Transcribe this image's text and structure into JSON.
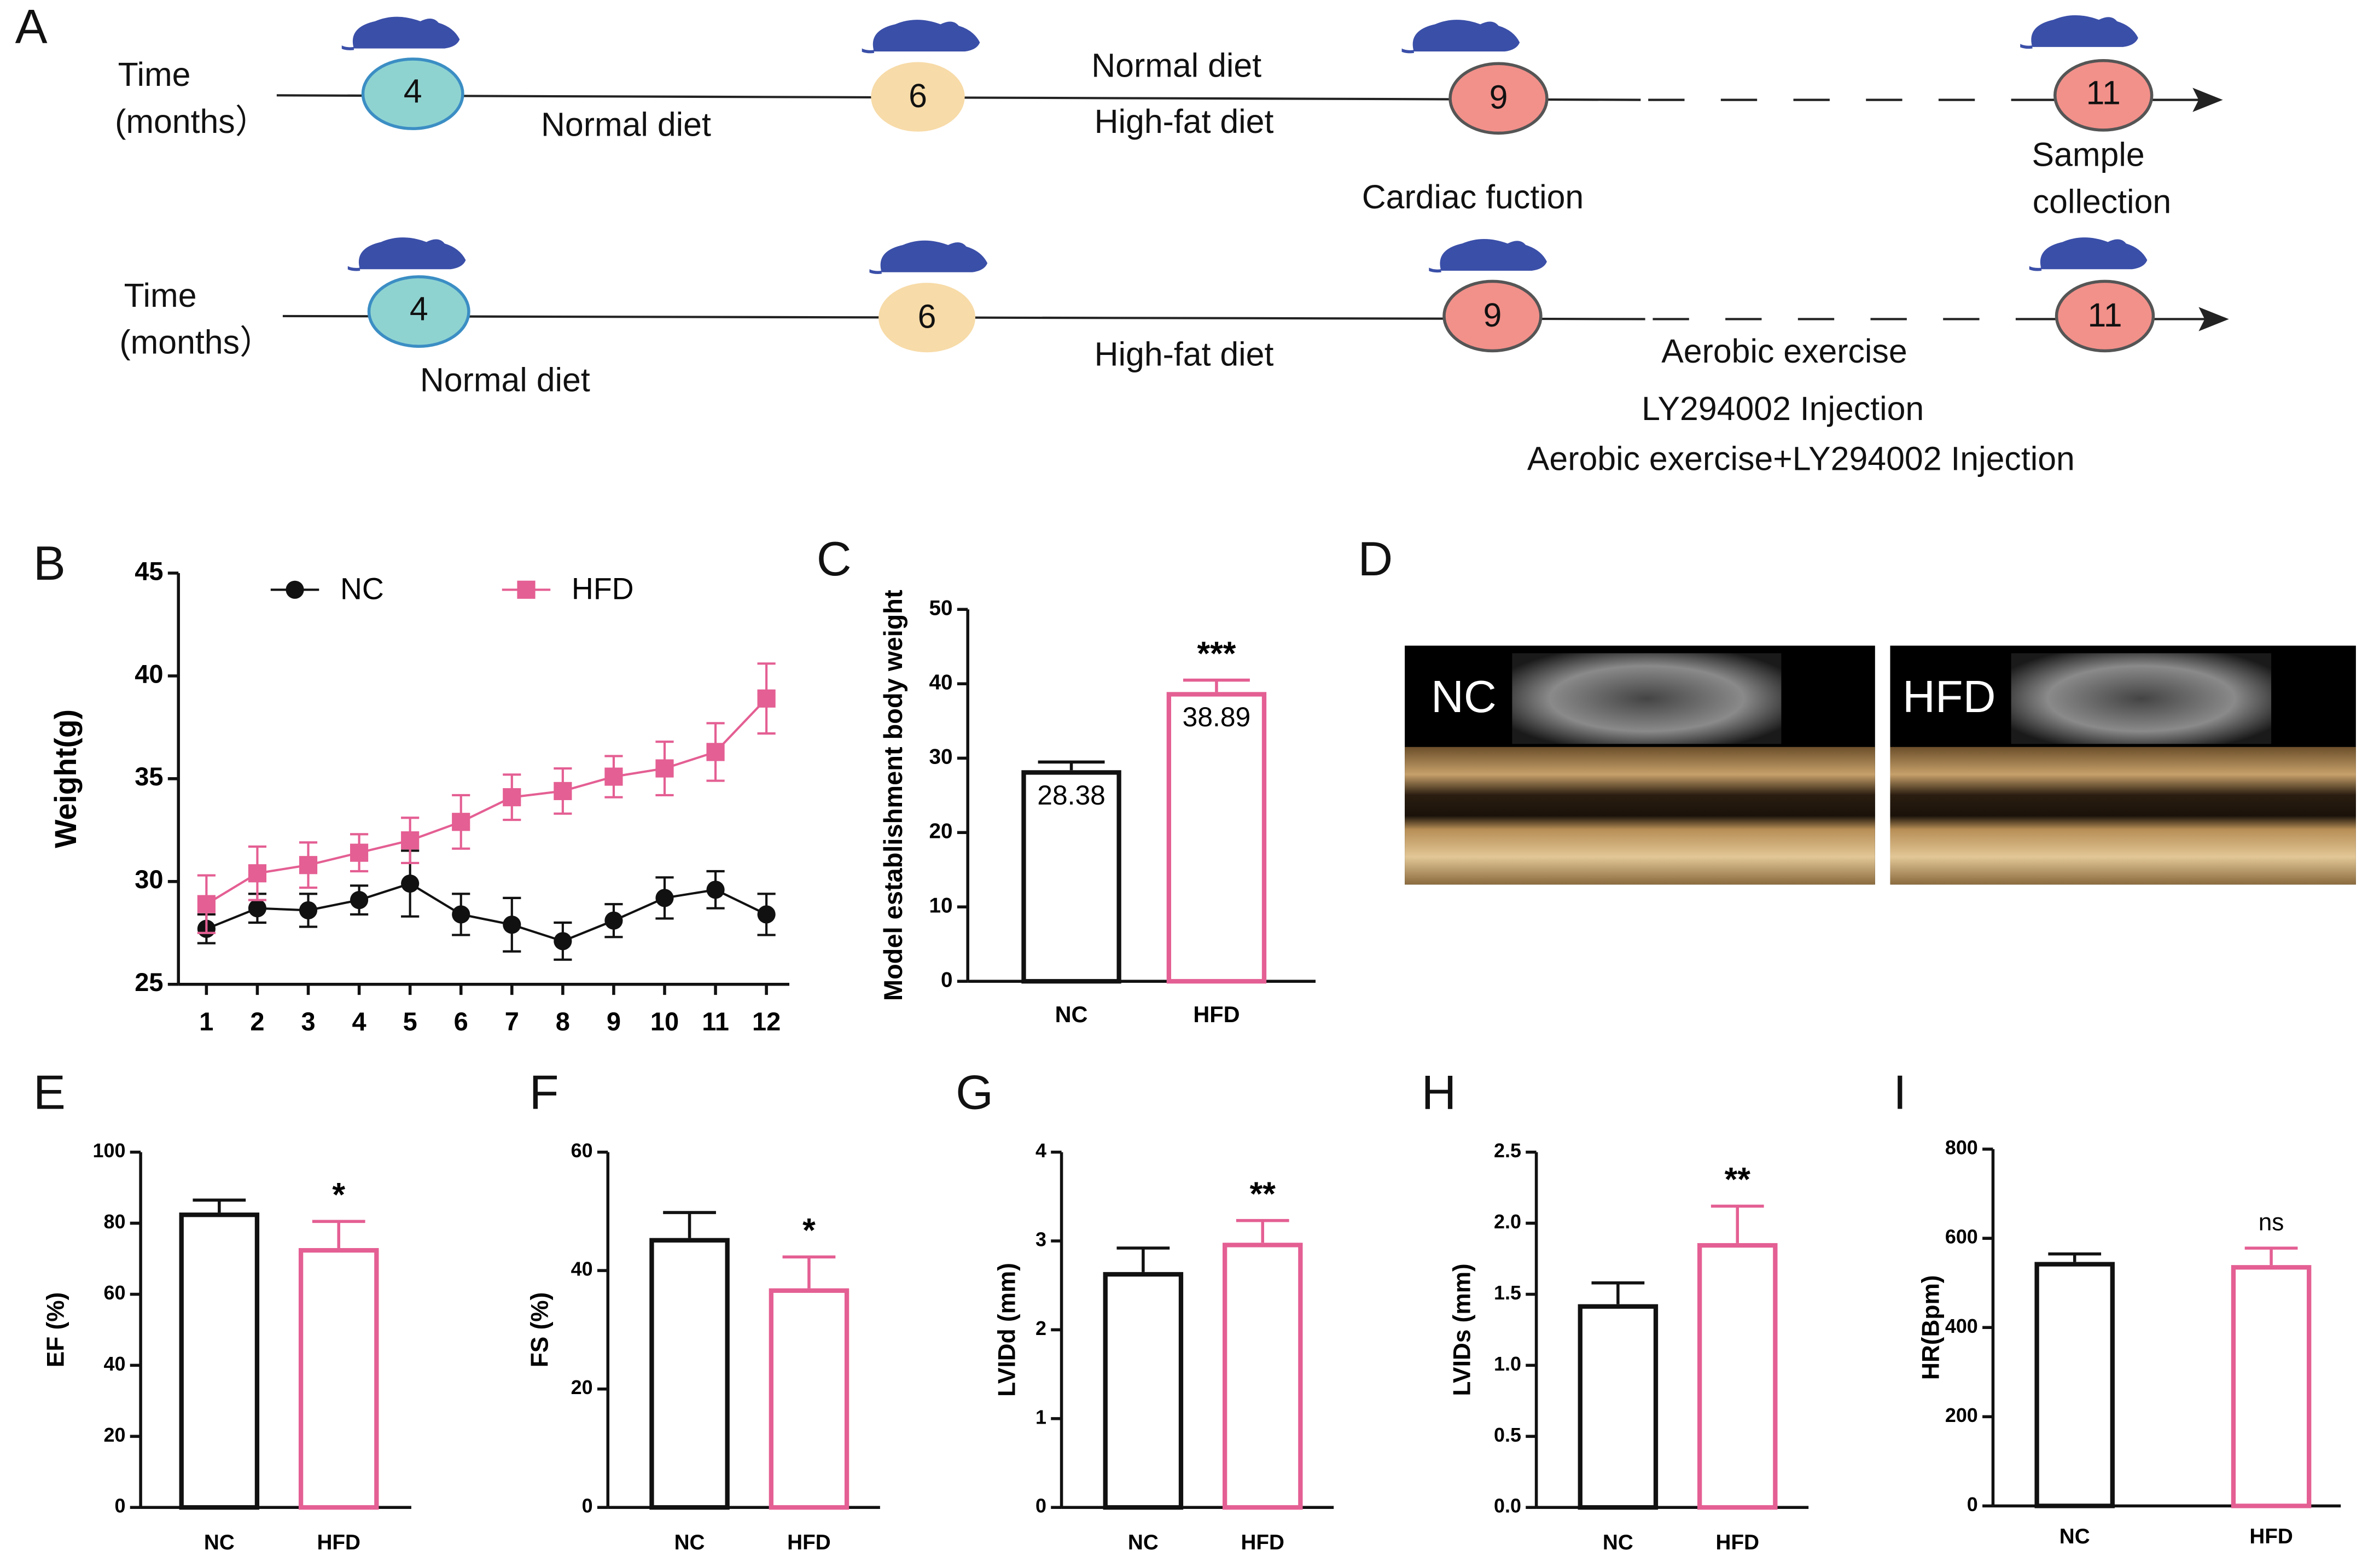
{
  "panels": [
    "A",
    "B",
    "C",
    "D",
    "E",
    "F",
    "G",
    "H",
    "I"
  ],
  "timeline": {
    "rows": [
      {
        "axis_label": [
          "Time",
          "(months）"
        ],
        "nodes": [
          "4",
          "6",
          "9",
          "11"
        ],
        "notes": [
          "Normal diet",
          "Normal diet",
          "High-fat diet",
          "Cardiac fuction",
          "Sample",
          "collection"
        ]
      },
      {
        "axis_label": [
          "Time",
          "(months）"
        ],
        "nodes": [
          "4",
          "6",
          "9",
          "11"
        ],
        "notes": [
          "Normal diet",
          "High-fat diet",
          "Aerobic exercise",
          "LY294002 Injection",
          "Aerobic exercise+LY294002 Injection"
        ]
      }
    ]
  },
  "echo_images": [
    "NC",
    "HFD"
  ],
  "chart_data": [
    {
      "type": "line",
      "ylabel": "Weight(g)",
      "x": [
        1,
        2,
        3,
        4,
        5,
        6,
        7,
        8,
        9,
        10,
        11,
        12
      ],
      "xlim": [
        0.45,
        12.45
      ],
      "xticks": [
        1,
        2,
        3,
        4,
        5,
        6,
        7,
        8,
        9,
        10,
        11,
        12
      ],
      "ylim": [
        25,
        45
      ],
      "yticks": [
        25,
        30,
        35,
        40,
        45
      ],
      "legend": "top",
      "series": [
        {
          "name": "NC",
          "color": "#111111",
          "marker": "circle",
          "values": [
            27.7,
            28.7,
            28.6,
            29.1,
            29.9,
            28.4,
            27.9,
            27.1,
            28.1,
            29.2,
            29.6,
            28.4
          ],
          "errors": [
            0.7,
            0.7,
            0.8,
            0.7,
            1.6,
            1.0,
            1.3,
            0.9,
            0.8,
            1.0,
            0.9,
            1.0
          ]
        },
        {
          "name": "HFD",
          "color": "#e45f93",
          "marker": "square",
          "values": [
            28.9,
            30.4,
            30.8,
            31.4,
            32.0,
            32.9,
            34.1,
            34.4,
            35.1,
            35.5,
            36.3,
            38.9
          ],
          "errors": [
            1.4,
            1.3,
            1.1,
            0.9,
            1.1,
            1.3,
            1.1,
            1.1,
            1.0,
            1.3,
            1.4,
            1.7
          ]
        }
      ]
    },
    {
      "type": "bar",
      "ylabel": "Model establishment body weight",
      "categories": [
        "NC",
        "HFD"
      ],
      "values": [
        28.38,
        38.89
      ],
      "errors": [
        1.1,
        1.6
      ],
      "colors": [
        "#111111",
        "#e45f93"
      ],
      "data_labels": true,
      "annotation": "***",
      "ylim": [
        0,
        50
      ],
      "yticks": [
        0,
        10,
        20,
        30,
        40,
        50
      ]
    },
    {
      "type": "bar",
      "ylabel": "EF (%)",
      "categories": [
        "NC",
        "HFD"
      ],
      "values": [
        83,
        73
      ],
      "errors": [
        3.5,
        7.5
      ],
      "colors": [
        "#111111",
        "#e45f93"
      ],
      "annotation": "*",
      "ylim": [
        0,
        100
      ],
      "yticks": [
        0,
        20,
        40,
        60,
        80,
        100
      ]
    },
    {
      "type": "bar",
      "ylabel": "FS (%)",
      "categories": [
        "NC",
        "HFD"
      ],
      "values": [
        45.5,
        37
      ],
      "errors": [
        4.3,
        5.3
      ],
      "colors": [
        "#111111",
        "#e45f93"
      ],
      "annotation": "*",
      "ylim": [
        0,
        60
      ],
      "yticks": [
        0,
        20,
        40,
        60
      ]
    },
    {
      "type": "bar",
      "ylabel": "LVIDd (mm)",
      "categories": [
        "NC",
        "HFD"
      ],
      "values": [
        2.65,
        2.98
      ],
      "errors": [
        0.27,
        0.25
      ],
      "colors": [
        "#111111",
        "#e45f93"
      ],
      "annotation": "**",
      "ylim": [
        0,
        4
      ],
      "yticks": [
        0,
        1,
        2,
        3,
        4
      ]
    },
    {
      "type": "bar",
      "ylabel": "LVIDs (mm)",
      "categories": [
        "NC",
        "HFD"
      ],
      "values": [
        1.43,
        1.86
      ],
      "errors": [
        0.15,
        0.26
      ],
      "colors": [
        "#111111",
        "#e45f93"
      ],
      "annotation": "**",
      "ylim": [
        0,
        2.5
      ],
      "yticks": [
        {
          "value": 0,
          "label": "0.0"
        },
        0.5,
        {
          "value": 1,
          "label": "1.0"
        },
        1.5,
        {
          "value": 2,
          "label": "2.0"
        },
        2.5
      ]
    },
    {
      "type": "bar",
      "ylabel": "HR(Bpm)",
      "categories": [
        "NC",
        "HFD"
      ],
      "values": [
        547,
        540
      ],
      "errors": [
        18,
        38
      ],
      "colors": [
        "#111111",
        "#e45f93"
      ],
      "annotation": "ns",
      "ylim": [
        0,
        800
      ],
      "yticks": [
        0,
        200,
        400,
        600,
        800
      ]
    }
  ]
}
